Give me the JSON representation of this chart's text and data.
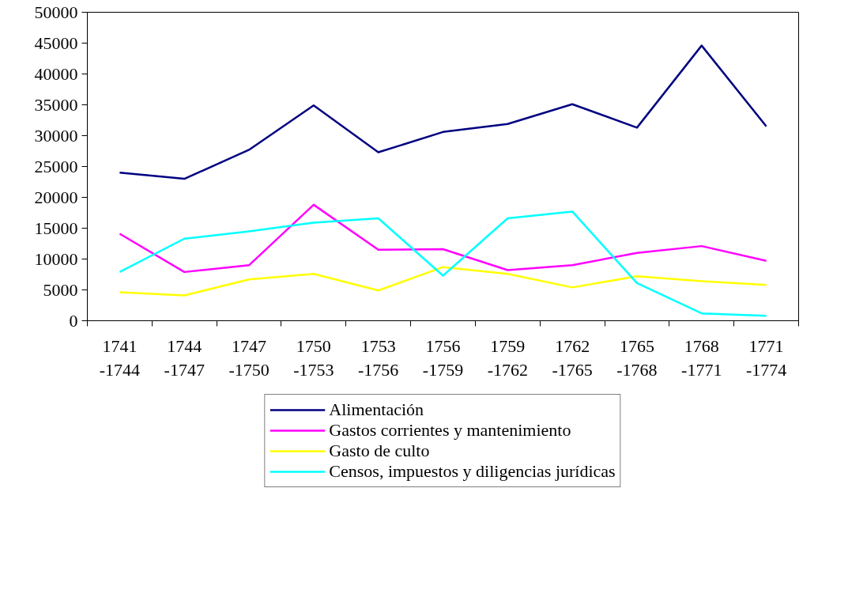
{
  "chart_data": {
    "type": "line",
    "categories": [
      "1741\n-1744",
      "1744\n-1747",
      "1747\n-1750",
      "1750\n-1753",
      "1753\n-1756",
      "1756\n-1759",
      "1759\n-1762",
      "1762\n-1765",
      "1765\n-1768",
      "1768\n-1771",
      "1771\n-1774"
    ],
    "series": [
      {
        "name": "Alimentación",
        "color": "#000080",
        "values": [
          24000,
          23000,
          27700,
          34900,
          27300,
          30600,
          31900,
          35100,
          31300,
          44600,
          31500
        ]
      },
      {
        "name": "Gastos corrientes y mantenimiento",
        "color": "#ff00ff",
        "values": [
          14100,
          7900,
          9000,
          18800,
          11500,
          11600,
          8200,
          9000,
          11000,
          12100,
          9700
        ]
      },
      {
        "name": "Gasto de culto",
        "color": "#ffff00",
        "values": [
          4600,
          4100,
          6700,
          7600,
          4900,
          8700,
          7600,
          5400,
          7200,
          6400,
          5800
        ]
      },
      {
        "name": "Censos, impuestos y diligencias jurídicas",
        "color": "#00ffff",
        "values": [
          7900,
          13300,
          14500,
          15900,
          16600,
          7300,
          16600,
          17700,
          6100,
          1200,
          800
        ]
      }
    ],
    "ylim": [
      0,
      50000
    ],
    "yticks": [
      0,
      5000,
      10000,
      15000,
      20000,
      25000,
      30000,
      35000,
      40000,
      45000,
      50000
    ],
    "grid": false,
    "legend": "bottom",
    "line_style": "solid",
    "marker": "none"
  }
}
